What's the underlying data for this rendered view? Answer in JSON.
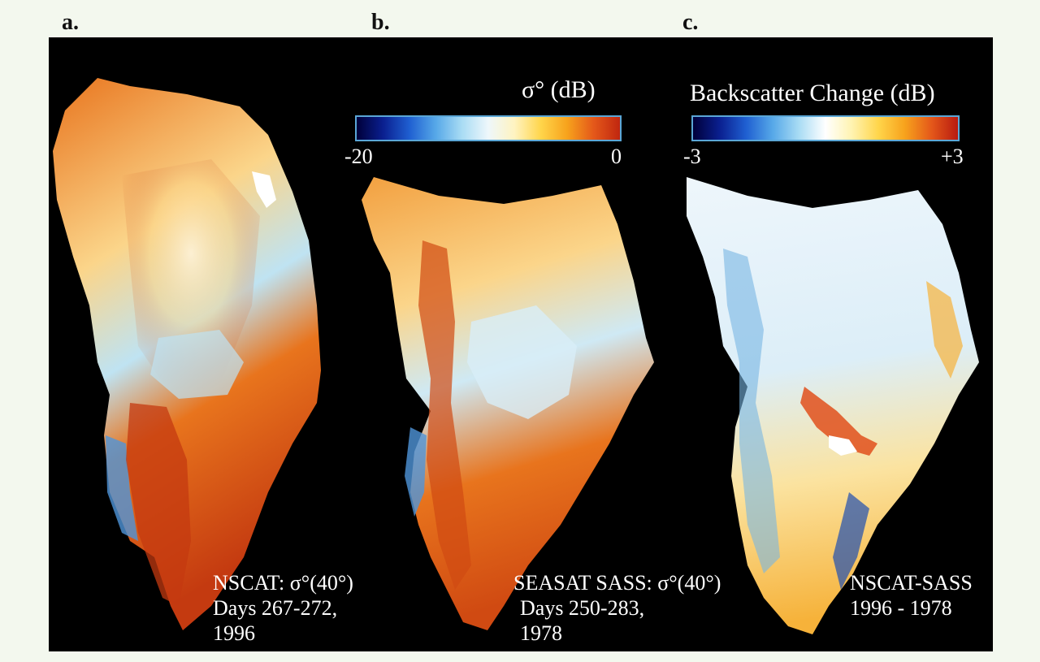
{
  "panels": {
    "a": "a.",
    "b": "b.",
    "c": "c."
  },
  "colorbar_sigma": {
    "title": "σ° (dB)",
    "min_label": "-20",
    "max_label": "0",
    "range": [
      -20,
      0
    ],
    "colors": [
      "#00003a",
      "#0a1f8f",
      "#1f5fd1",
      "#56a8e8",
      "#a9dcf4",
      "#eef7fb",
      "#fff3c0",
      "#ffd54a",
      "#f7a21c",
      "#e4581a",
      "#c0260f"
    ]
  },
  "colorbar_change": {
    "title": "Backscatter Change (dB)",
    "min_label": "-3",
    "max_label": "+3",
    "range": [
      -3,
      3
    ],
    "colors": [
      "#00003a",
      "#0a1f8f",
      "#1f5fd1",
      "#56a8e8",
      "#a9dcf4",
      "#ffffff",
      "#fff3b0",
      "#ffd54a",
      "#f7a21c",
      "#e4581a",
      "#b81a10"
    ]
  },
  "captions": {
    "a": [
      "NSCAT: σ°(40°)",
      "Days 267-272,",
      "1996"
    ],
    "b": [
      "SEASAT SASS: σ°(40°)",
      "Days 250-283,",
      "1978"
    ],
    "c": [
      "NSCAT-SASS",
      "1996 - 1978"
    ]
  },
  "map_colors": {
    "background": "#000000",
    "ice_dark": "#c43a10",
    "ice_mid": "#e8741d",
    "ice_light": "#fbd58a",
    "ice_pale": "#fff2d6",
    "interior_blue": "#bfe3f2",
    "coast_blue": "#4f95d9",
    "change_base": "#eef6fb",
    "change_blue": "#78b5e3",
    "change_red": "#e0501c",
    "change_orange": "#f6b23a"
  }
}
